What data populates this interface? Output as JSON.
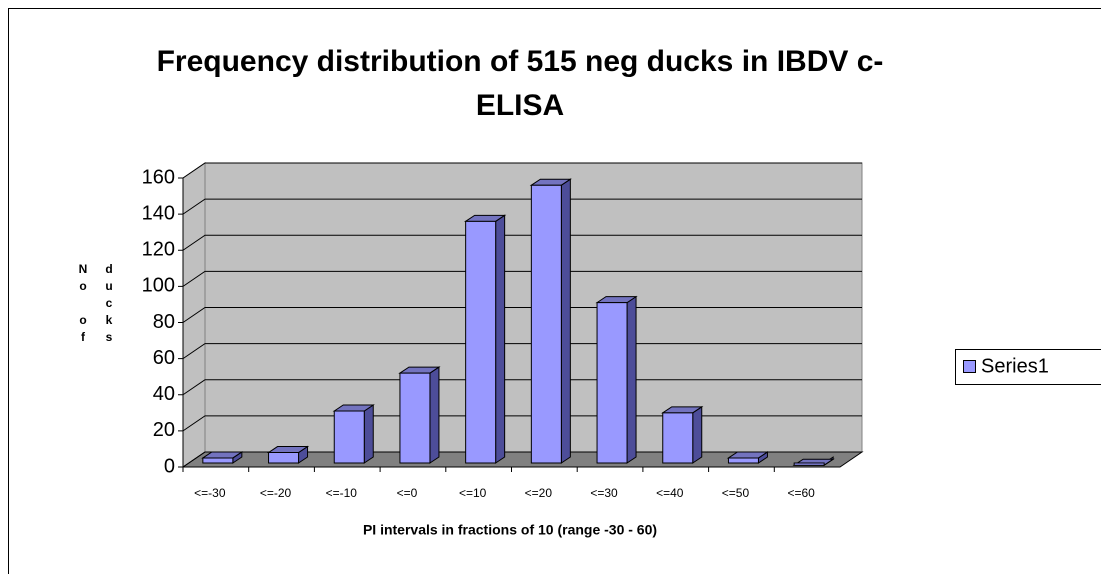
{
  "chart_data": {
    "type": "bar3d",
    "title": "Frequency distribution of 515 neg ducks in IBDV c-ELISA",
    "x_label": "PI intervals in fractions of 10 (range -30 - 60)",
    "y_label": "No of ducks",
    "categories": [
      "<=-30",
      "<=-20",
      "<=-10",
      "<=0",
      "<=10",
      "<=20",
      "<=30",
      "<=40",
      "<=50",
      "<=60"
    ],
    "series": [
      {
        "name": "Series1",
        "color": "#9999ff",
        "values": [
          5,
          8,
          31,
          52,
          136,
          156,
          91,
          30,
          5,
          1
        ]
      }
    ],
    "ylim": [
      0,
      160
    ],
    "yticks": [
      0,
      20,
      40,
      60,
      80,
      100,
      120,
      140,
      160
    ],
    "grid": true,
    "legend": "right"
  }
}
